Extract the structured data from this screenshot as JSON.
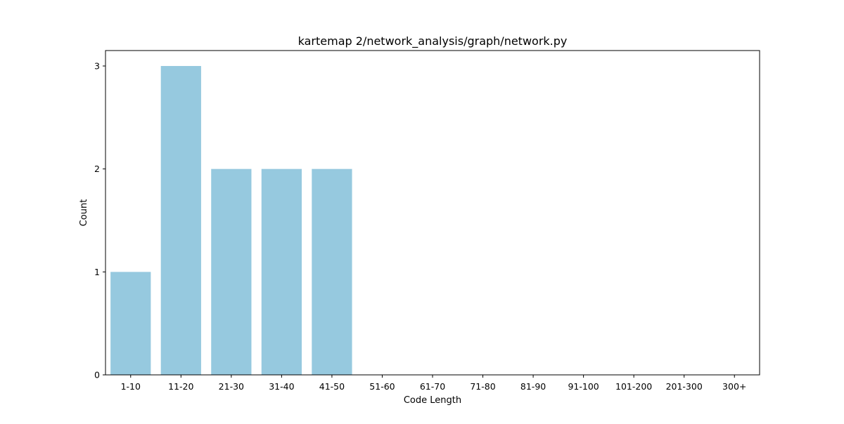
{
  "chart_data": {
    "type": "bar",
    "title": "kartemap 2/network_analysis/graph/network.py",
    "xlabel": "Code Length",
    "ylabel": "Count",
    "categories": [
      "1-10",
      "11-20",
      "21-30",
      "31-40",
      "41-50",
      "51-60",
      "61-70",
      "71-80",
      "81-90",
      "91-100",
      "101-200",
      "201-300",
      "300+"
    ],
    "values": [
      1,
      3,
      2,
      2,
      2,
      0,
      0,
      0,
      0,
      0,
      0,
      0,
      0
    ],
    "ylim": [
      0,
      3.15
    ],
    "yticks": [
      0,
      1,
      2,
      3
    ],
    "grid": false,
    "bar_color": "#96c9df"
  }
}
